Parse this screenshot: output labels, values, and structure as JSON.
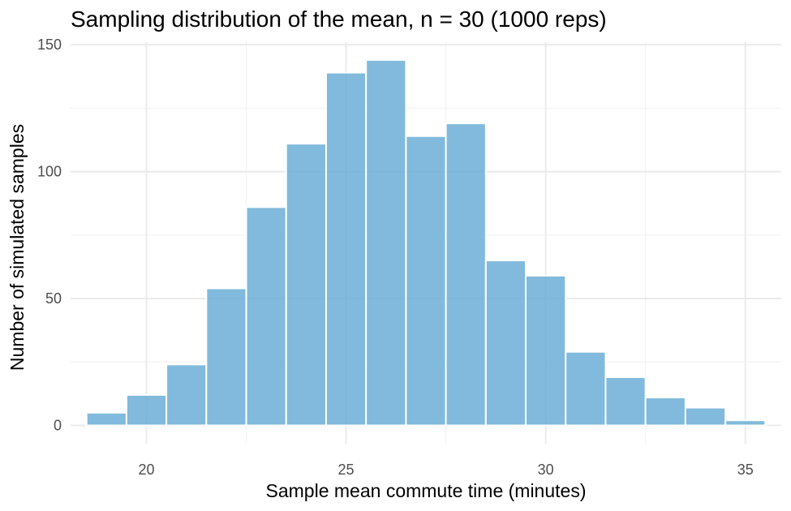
{
  "chart_data": {
    "type": "bar",
    "title": "Sampling distribution of the mean, n = 30 (1000 reps)",
    "xlabel": "Sample mean commute time (minutes)",
    "ylabel": "Number of simulated samples",
    "bin_width": 1,
    "bins": [
      {
        "x0": 18.5,
        "x1": 19.5,
        "count": 5
      },
      {
        "x0": 19.5,
        "x1": 20.5,
        "count": 12
      },
      {
        "x0": 20.5,
        "x1": 21.5,
        "count": 24
      },
      {
        "x0": 21.5,
        "x1": 22.5,
        "count": 54
      },
      {
        "x0": 22.5,
        "x1": 23.5,
        "count": 86
      },
      {
        "x0": 23.5,
        "x1": 24.5,
        "count": 111
      },
      {
        "x0": 24.5,
        "x1": 25.5,
        "count": 139
      },
      {
        "x0": 25.5,
        "x1": 26.5,
        "count": 144
      },
      {
        "x0": 26.5,
        "x1": 27.5,
        "count": 114
      },
      {
        "x0": 27.5,
        "x1": 28.5,
        "count": 119
      },
      {
        "x0": 28.5,
        "x1": 29.5,
        "count": 65
      },
      {
        "x0": 29.5,
        "x1": 30.5,
        "count": 59
      },
      {
        "x0": 30.5,
        "x1": 31.5,
        "count": 29
      },
      {
        "x0": 31.5,
        "x1": 32.5,
        "count": 19
      },
      {
        "x0": 32.5,
        "x1": 33.5,
        "count": 11
      },
      {
        "x0": 33.5,
        "x1": 34.5,
        "count": 7
      },
      {
        "x0": 34.5,
        "x1": 35.5,
        "count": 2
      }
    ],
    "xlim": [
      18.1,
      35.9
    ],
    "ylim": [
      -7.2,
      151
    ],
    "x_ticks": [
      20,
      25,
      30,
      35
    ],
    "y_ticks": [
      0,
      50,
      100,
      150
    ],
    "x_minor_ticks": [
      22.5,
      27.5,
      32.5
    ],
    "y_minor_ticks": [
      25,
      75,
      125
    ],
    "grid": true,
    "legend": "none",
    "bar_color": "#6baed6",
    "bar_opacity": 0.85,
    "bar_outline_color": "#ffffff"
  }
}
